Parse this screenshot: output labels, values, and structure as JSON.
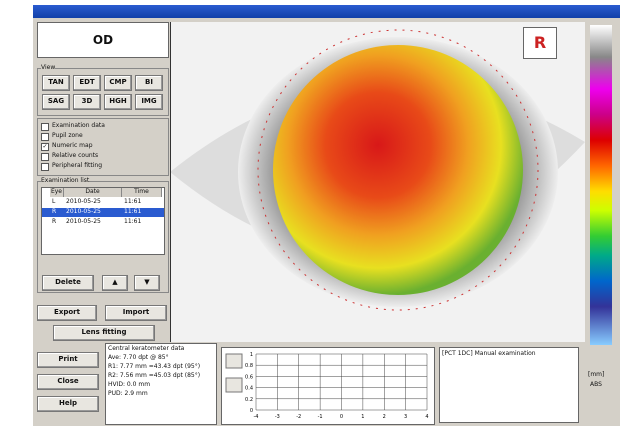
{
  "eye_label": "OD",
  "eye_badge": "R",
  "view": {
    "title": "View",
    "buttons": [
      "TAN",
      "EDT",
      "CMP",
      "BI",
      "SAG",
      "3D",
      "HGH",
      "IMG"
    ]
  },
  "options": [
    {
      "label": "Examination data",
      "checked": false
    },
    {
      "label": "Pupil zone",
      "checked": false
    },
    {
      "label": "Numeric map",
      "checked": true
    },
    {
      "label": "Relative counts",
      "checked": false
    },
    {
      "label": "Peripheral fitting",
      "checked": false
    }
  ],
  "exam_list": {
    "title": "Examination list",
    "columns": [
      "Eye",
      "Date",
      "Time"
    ],
    "rows": [
      {
        "cells": [
          "L",
          "2010-05-25",
          "11:61"
        ],
        "selected": false
      },
      {
        "cells": [
          "R",
          "2010-05-25",
          "11:61"
        ],
        "selected": true
      },
      {
        "cells": [
          "R",
          "2010-05-25",
          "11:61"
        ],
        "selected": false
      }
    ]
  },
  "buttons": {
    "delete": "Delete",
    "export": "Export",
    "import": "Import",
    "lens": "Lens fitting",
    "print": "Print",
    "close": "Close",
    "help": "Help"
  },
  "keratometer": {
    "title": "Central keratometer data",
    "lines": [
      "Ave: 7.70 dpt @ 85°",
      "R1: 7.77 mm =43.43 dpt (95°)",
      "R2: 7.56 mm =45.03 dpt (85°)",
      "HVID: 0.0 mm",
      "PUD: 2.9 mm"
    ]
  },
  "graph": {
    "yticks": [
      "1",
      "0.8",
      "0.6",
      "0.4",
      "0.2",
      "0"
    ],
    "xticks": [
      "-4",
      "-3",
      "-2",
      "-1",
      "0",
      "1",
      "2",
      "3",
      "4"
    ]
  },
  "note": "[PCT 1DC] Manual examination",
  "unit": "[mm]",
  "unit2": "ABS"
}
